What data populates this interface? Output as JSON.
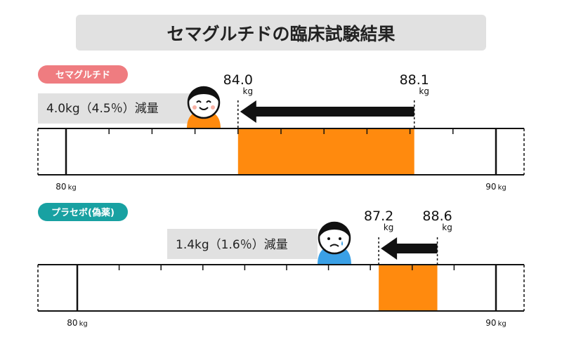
{
  "title": "セマグルチドの臨床試験結果",
  "colors": {
    "semaglutide_badge": "#ef7c80",
    "placebo_badge": "#18a1a2",
    "range_bar": "#ff8a0e",
    "panel_bg": "#e1e1e1",
    "arrow": "#111111",
    "smile_body": "#ff8a0e",
    "sad_body": "#3aa0e6"
  },
  "chart_data": [
    {
      "type": "range-bar",
      "group": "セマグルチド",
      "result": "4.0kg（4.5％）減量",
      "start": 88.1,
      "end": 84.0,
      "start_label": "88.1",
      "end_label": "84.0",
      "unit": "kg",
      "axis_min": 80,
      "axis_max": 90,
      "axis_min_label": "80",
      "axis_max_label": "90",
      "axis_unit": "kg",
      "face": "smile-face-icon"
    },
    {
      "type": "range-bar",
      "group": "プラセボ(偽薬)",
      "result": "1.4kg（1.6％）減量",
      "start": 88.6,
      "end": 87.2,
      "start_label": "88.6",
      "end_label": "87.2",
      "unit": "kg",
      "axis_min": 80,
      "axis_max": 90,
      "axis_min_label": "80",
      "axis_max_label": "90",
      "axis_unit": "kg",
      "face": "sad-face-icon"
    }
  ]
}
